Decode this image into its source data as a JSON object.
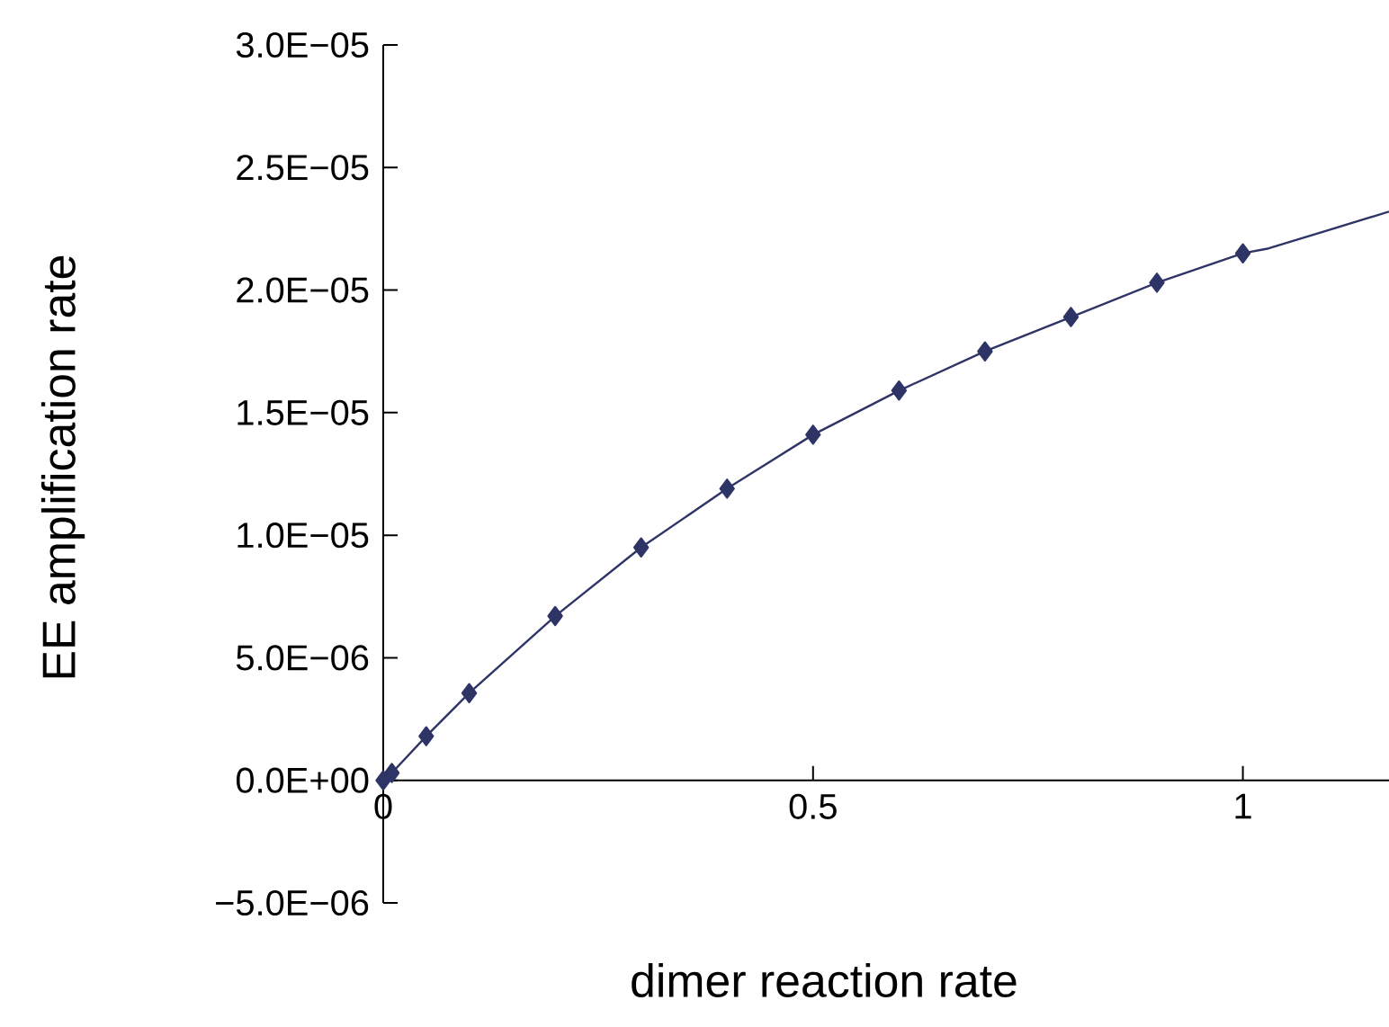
{
  "chart_data": {
    "type": "line",
    "xlabel": "dimer reaction rate",
    "ylabel": "EE amplification rate",
    "marker": "diamond",
    "line_style": "solid",
    "xlim": [
      0,
      1.17
    ],
    "xticks": [
      0,
      0.5,
      1
    ],
    "ylim": [
      -5e-06,
      3e-05
    ],
    "yticks": [
      {
        "value": -5e-06,
        "label": "−5.0E−06"
      },
      {
        "value": 0,
        "label": "0.0E+00"
      },
      {
        "value": 5e-06,
        "label": "5.0E−06"
      },
      {
        "value": 1e-05,
        "label": "1.0E−05"
      },
      {
        "value": 1.5e-05,
        "label": "1.5E−05"
      },
      {
        "value": 2e-05,
        "label": "2.0E−05"
      },
      {
        "value": 2.5e-05,
        "label": "2.5E−05"
      },
      {
        "value": 3e-05,
        "label": "3.0E−05"
      }
    ],
    "series": [
      {
        "color": "#2e3566",
        "x": [
          0,
          0.01,
          0.05,
          0.1,
          0.2,
          0.3,
          0.4,
          0.5,
          0.6,
          0.7,
          0.8,
          0.9,
          1.0
        ],
        "values": [
          0,
          3e-07,
          1.8e-06,
          3.56e-06,
          6.7e-06,
          9.5e-06,
          1.19e-05,
          1.41e-05,
          1.59e-05,
          1.75e-05,
          1.89e-05,
          2.03e-05,
          2.15e-05
        ]
      },
      {
        "color": "#2e3566",
        "marker": "none",
        "x": [
          1.0,
          1.03,
          1.17
        ],
        "values": [
          2.15e-05,
          2.17e-05,
          2.32e-05
        ]
      }
    ]
  }
}
